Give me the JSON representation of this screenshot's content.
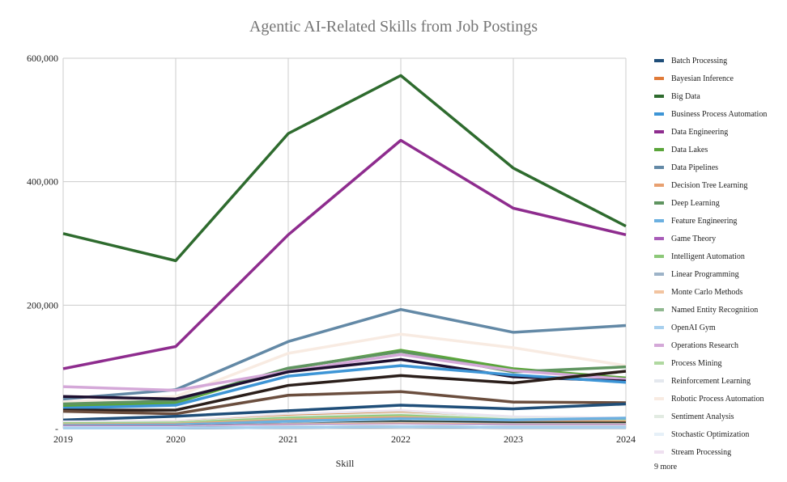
{
  "chart_data": {
    "type": "line",
    "title": "Agentic AI-Related Skills from Job Postings",
    "xlabel": "Skill",
    "ylabel": "",
    "x": [
      "2019",
      "2020",
      "2021",
      "2022",
      "2023",
      "2024"
    ],
    "ylim": [
      0,
      600000
    ],
    "yticks": [
      0,
      200000,
      400000,
      600000
    ],
    "ytick_labels": [
      "-",
      "200,000",
      "400,000",
      "600,000"
    ],
    "grid": true,
    "legend_position": "right",
    "legend_more": "9 more",
    "series": [
      {
        "name": "Batch Processing",
        "color": "#1f4e79",
        "values": [
          14000,
          20000,
          29000,
          38000,
          32000,
          40000
        ]
      },
      {
        "name": "Bayesian Inference",
        "color": "#e07b39",
        "values": [
          8000,
          10000,
          20000,
          25000,
          15000,
          14000
        ]
      },
      {
        "name": "Big Data",
        "color": "#2e6b2e",
        "values": [
          316000,
          272000,
          478000,
          572000,
          422000,
          328000
        ]
      },
      {
        "name": "Business Process Automation",
        "color": "#3d95d6",
        "values": [
          33000,
          38000,
          85000,
          102000,
          87000,
          75000
        ]
      },
      {
        "name": "Data Engineering",
        "color": "#8e2c8e",
        "values": [
          97000,
          133000,
          314000,
          467000,
          357000,
          314000
        ]
      },
      {
        "name": "Data Lakes",
        "color": "#5aa53a",
        "values": [
          37000,
          42000,
          97000,
          127000,
          97000,
          82000
        ]
      },
      {
        "name": "Data Pipelines",
        "color": "#6389a6",
        "values": [
          48000,
          63000,
          141000,
          193000,
          156000,
          167000
        ]
      },
      {
        "name": "Decision Tree Learning",
        "color": "#e8a070",
        "values": [
          6000,
          7000,
          14000,
          18000,
          12000,
          11000
        ]
      },
      {
        "name": "Deep Learning",
        "color": "#5f9460",
        "values": [
          40000,
          45000,
          98000,
          125000,
          92000,
          100000
        ]
      },
      {
        "name": "Feature Engineering",
        "color": "#6cb0e0",
        "values": [
          5000,
          6000,
          12000,
          16000,
          14000,
          17000
        ]
      },
      {
        "name": "Game Theory",
        "color": "#a85cb8",
        "values": [
          3000,
          3000,
          5000,
          6000,
          5000,
          5000
        ]
      },
      {
        "name": "Intelligent Automation",
        "color": "#8cc878",
        "values": [
          8000,
          9000,
          17000,
          21000,
          14000,
          13000
        ]
      },
      {
        "name": "Linear Programming",
        "color": "#9db3c8",
        "values": [
          4000,
          4000,
          7000,
          9000,
          7000,
          7000
        ]
      },
      {
        "name": "Monte Carlo Methods",
        "color": "#f2c4a0",
        "values": [
          3000,
          3000,
          6000,
          8000,
          6000,
          6000
        ]
      },
      {
        "name": "Named Entity Recognition",
        "color": "#90b890",
        "values": [
          3000,
          3000,
          5000,
          6000,
          5000,
          5000
        ]
      },
      {
        "name": "OpenAI Gym",
        "color": "#a8d0ee",
        "values": [
          1000,
          1000,
          2000,
          3000,
          2000,
          2000
        ]
      },
      {
        "name": "Operations Research",
        "color": "#d4a8d8",
        "values": [
          68000,
          62000,
          93000,
          120000,
          94000,
          80000
        ]
      },
      {
        "name": "Process Mining",
        "color": "#b0d8a0",
        "values": [
          7000,
          8000,
          15000,
          19000,
          13000,
          12000
        ]
      },
      {
        "name": "Reinforcement Learning",
        "color": "#e4e8ee",
        "values": [
          10000,
          11000,
          22000,
          27000,
          18000,
          16000
        ]
      },
      {
        "name": "Robotic Process Automation",
        "color": "#f8ebe2",
        "values": [
          43000,
          52000,
          122000,
          153000,
          131000,
          102000
        ]
      },
      {
        "name": "Sentiment Analysis",
        "color": "#e2ebe2",
        "values": [
          9000,
          10000,
          19000,
          24000,
          16000,
          15000
        ]
      },
      {
        "name": "Stochastic Optimization",
        "color": "#e6f0f8",
        "values": [
          2000,
          2000,
          4000,
          5000,
          4000,
          4000
        ]
      },
      {
        "name": "Stream Processing",
        "color": "#efe0f0",
        "values": [
          11000,
          12000,
          23000,
          29000,
          19000,
          17000
        ]
      },
      {
        "name": "",
        "color": "#1e1030",
        "values": [
          52000,
          48000,
          92000,
          112000,
          84000,
          77000
        ]
      },
      {
        "name": "",
        "color": "#2a1e1a",
        "values": [
          30000,
          30000,
          70000,
          86000,
          74000,
          93000
        ]
      },
      {
        "name": "",
        "color": "#6b4e3e",
        "values": [
          28000,
          24000,
          54000,
          60000,
          43000,
          42000
        ]
      },
      {
        "name": "",
        "color": "#1a2a1a",
        "values": [
          4000,
          4000,
          7000,
          11000,
          9000,
          9000
        ]
      },
      {
        "name": "",
        "color": "#2a1810",
        "values": [
          1000,
          1000,
          2000,
          3000,
          2000,
          2000
        ]
      }
    ]
  }
}
